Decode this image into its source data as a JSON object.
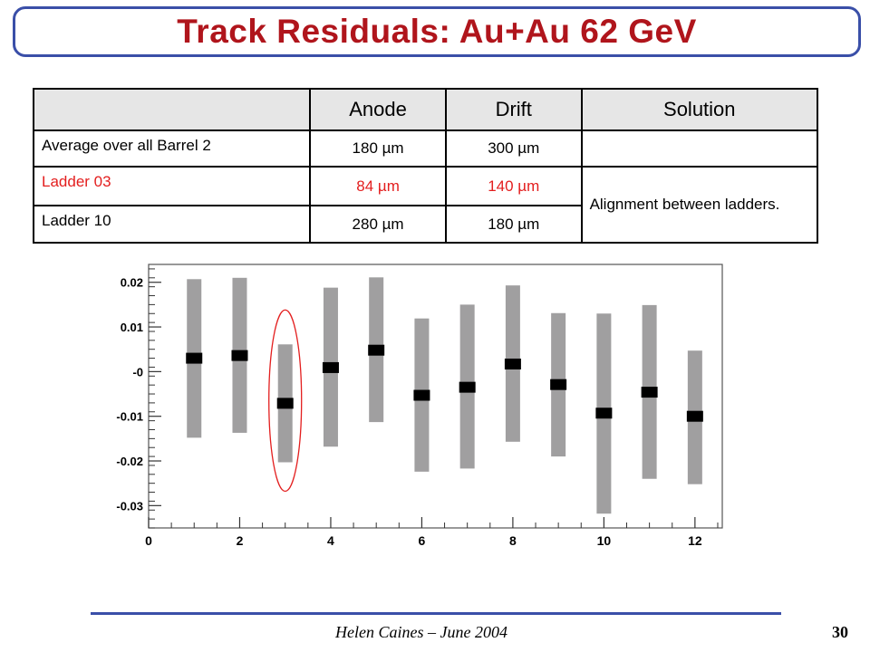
{
  "title": "Track Residuals: Au+Au 62 GeV",
  "table": {
    "headers": [
      "",
      "Anode",
      "Drift",
      "Solution"
    ],
    "rows": [
      {
        "label": "Average over all Barrel 2",
        "anode": "180 µm",
        "drift": "300 µm",
        "highlight": false
      },
      {
        "label": "Ladder 03",
        "anode": "84 µm",
        "drift": "140 µm",
        "highlight": true
      },
      {
        "label": "Ladder 10",
        "anode": "280 µm",
        "drift": "180 µm",
        "highlight": false
      }
    ],
    "solution": "Alignment between ladders."
  },
  "chart_data": {
    "type": "scatter",
    "title": "",
    "xlabel": "",
    "ylabel": "",
    "xlim": [
      0,
      12.6
    ],
    "ylim": [
      -0.035,
      0.024
    ],
    "x_ticks": [
      "0",
      "2",
      "4",
      "6",
      "8",
      "10",
      "12"
    ],
    "y_ticks": [
      "0.02",
      "0.01",
      "-0",
      "-0.01",
      "-0.02",
      "-0.03"
    ],
    "points": [
      {
        "x": 1,
        "y": 0.003,
        "err_low": -0.0148,
        "err_high": 0.0207
      },
      {
        "x": 2,
        "y": 0.0036,
        "err_low": -0.0137,
        "err_high": 0.021
      },
      {
        "x": 3,
        "y": -0.0071,
        "err_low": -0.0203,
        "err_high": 0.0061
      },
      {
        "x": 4,
        "y": 0.0009,
        "err_low": -0.0168,
        "err_high": 0.0188
      },
      {
        "x": 5,
        "y": 0.0048,
        "err_low": -0.0113,
        "err_high": 0.0211
      },
      {
        "x": 6,
        "y": -0.0053,
        "err_low": -0.0224,
        "err_high": 0.0119
      },
      {
        "x": 7,
        "y": -0.0035,
        "err_low": -0.0217,
        "err_high": 0.015
      },
      {
        "x": 8,
        "y": 0.0017,
        "err_low": -0.0157,
        "err_high": 0.0193
      },
      {
        "x": 9,
        "y": -0.0029,
        "err_low": -0.019,
        "err_high": 0.0131
      },
      {
        "x": 10,
        "y": -0.0093,
        "err_low": -0.0318,
        "err_high": 0.013
      },
      {
        "x": 11,
        "y": -0.0046,
        "err_low": -0.024,
        "err_high": 0.0149
      },
      {
        "x": 12,
        "y": -0.01,
        "err_low": -0.0252,
        "err_high": 0.0047
      }
    ],
    "highlighted_x": 3,
    "colors": {
      "bar": "#a09fa0",
      "marker": "#000000",
      "highlight": "#e31e1e"
    }
  },
  "footer": {
    "author": "Helen Caines – June 2004",
    "page": "30"
  }
}
